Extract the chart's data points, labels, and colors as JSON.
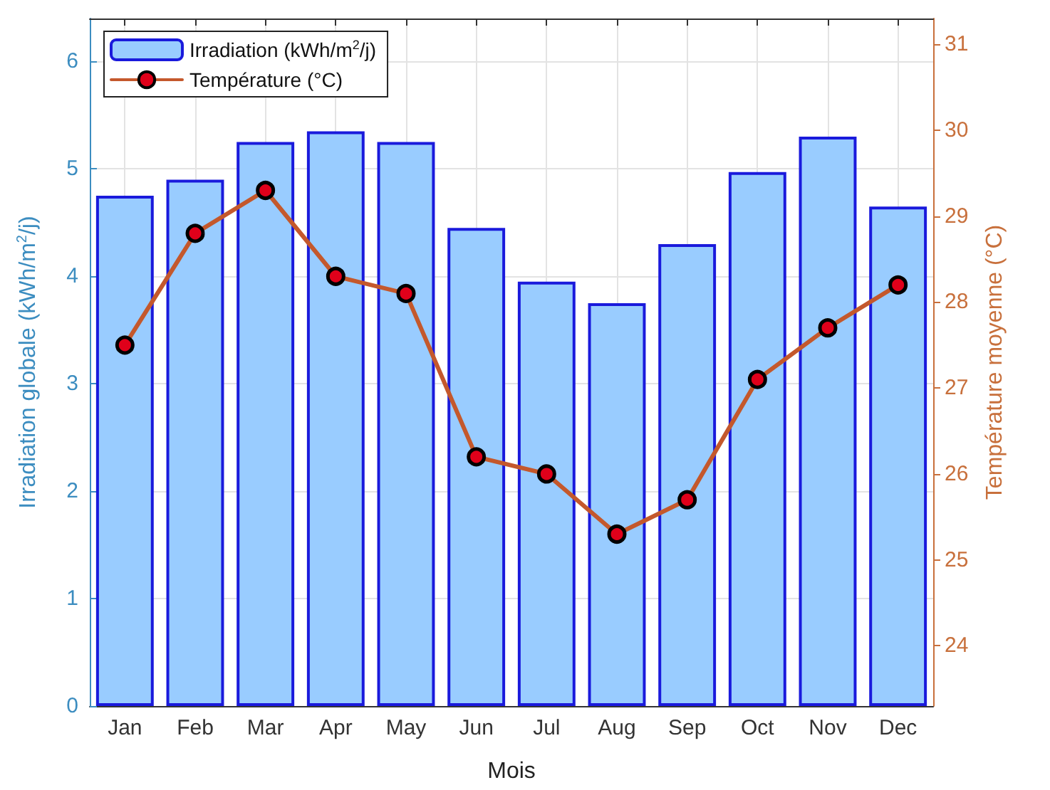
{
  "chart_data": {
    "type": "bar",
    "xlabel": "Mois",
    "ylabel": "Irradiation globale (kWh/m$^{2}$/j)",
    "y2label": "Température moyenne (°C)",
    "categories": [
      "Jan",
      "Feb",
      "Mar",
      "Apr",
      "May",
      "Jun",
      "Jul",
      "Aug",
      "Sep",
      "Oct",
      "Nov",
      "Dec"
    ],
    "series": [
      {
        "name": "Irradiation (kWh/m$^{2}$/j)",
        "color": "#99ccff",
        "values": [
          4.75,
          4.9,
          5.25,
          5.35,
          5.25,
          4.45,
          3.95,
          3.75,
          4.3,
          4.97,
          5.3,
          4.65
        ]
      },
      {
        "name": "Température (°C)",
        "type": "line",
        "axis": "y2",
        "color": "#c4582c",
        "marker": "circle",
        "values": [
          27.5,
          28.8,
          29.3,
          28.3,
          28.1,
          26.2,
          26.0,
          25.3,
          25.7,
          27.1,
          27.7,
          28.2
        ]
      }
    ],
    "ylim": [
      0,
      6.4
    ],
    "yticks": [
      0,
      1,
      2,
      3,
      4,
      5,
      6
    ],
    "y2lim": [
      23.3,
      31.3
    ],
    "y2ticks": [
      24,
      25,
      26,
      27,
      28,
      29,
      30,
      31
    ],
    "grid": true,
    "legend": "top left"
  }
}
